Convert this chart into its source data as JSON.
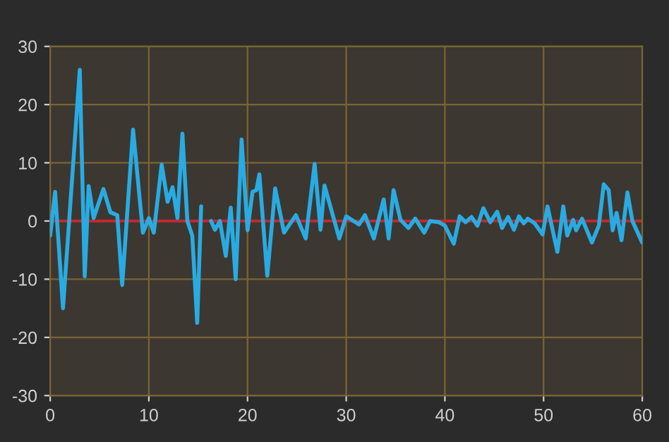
{
  "chart_data": {
    "type": "line",
    "xlim": [
      0,
      60
    ],
    "ylim": [
      -30,
      30
    ],
    "xticks": [
      0,
      10,
      20,
      30,
      40,
      50,
      60
    ],
    "yticks": [
      -30,
      -20,
      -10,
      0,
      10,
      20,
      30
    ],
    "grid": true,
    "marker": "none",
    "line_style": "solid",
    "ref_lines": [
      {
        "axis": "y",
        "value": 0,
        "color": "#c0282d"
      }
    ],
    "series": [
      {
        "color": "#29abe2",
        "x": [
          0,
          0.5,
          1.3,
          3.0,
          3.5,
          3.9,
          4.4,
          5.4,
          6.1,
          6.8,
          7.3,
          8.4,
          9.4,
          10,
          10.5,
          11.3,
          11.9,
          12.4,
          12.9,
          13.4,
          13.9,
          14.4,
          14.9,
          15.3,
          15.8,
          16.3,
          16.7,
          17.2,
          17.8,
          18.3,
          18.8,
          19.4,
          20,
          20.5,
          20.9,
          21.2,
          22,
          22.8,
          23.7,
          24.9,
          25.9,
          26.8,
          27.4,
          27.8,
          29.3,
          30,
          31.3,
          31.9,
          32.8,
          33.8,
          34.3,
          34.8,
          35.5,
          36.3,
          37,
          37.9,
          38.5,
          39.4,
          40,
          40.9,
          41.5,
          42.1,
          42.7,
          43.3,
          43.9,
          44.6,
          45.3,
          45.8,
          46.4,
          47,
          47.5,
          48,
          48.4,
          49.1,
          49.9,
          50.4,
          51.4,
          52,
          52.4,
          53,
          53.3,
          53.9,
          54.9,
          55.6,
          56.1,
          56.6,
          57,
          57.4,
          57.9,
          58.5,
          59,
          60
        ],
        "values": [
          -2.5,
          5,
          -15,
          26,
          -9.5,
          6,
          0.5,
          5.5,
          1.5,
          1,
          -11,
          15.7,
          -2,
          0.5,
          -2,
          9.7,
          3.3,
          5.8,
          0.5,
          15,
          0,
          -2.5,
          -17.5,
          2.5,
          null,
          0,
          -1.5,
          0,
          -6,
          2.3,
          -10,
          14,
          -1.6,
          5,
          5.3,
          8,
          -9.4,
          5.6,
          -2,
          1,
          -3,
          9.8,
          -1.5,
          6.1,
          -3,
          0.8,
          -0.6,
          1,
          -3,
          3.7,
          -3,
          5.3,
          0.2,
          -1.2,
          0.4,
          -2,
          0,
          -0.2,
          -0.8,
          -3.9,
          0.8,
          -0.2,
          0.7,
          -0.8,
          2.2,
          -0.2,
          1.6,
          -1.2,
          0.7,
          -1.5,
          0.8,
          -0.4,
          0.4,
          -0.4,
          -2.3,
          2.5,
          -5.3,
          2.5,
          -2.5,
          0.2,
          -1.6,
          0.4,
          -3.7,
          -0.8,
          6.3,
          5.3,
          -1.6,
          1.4,
          -3.3,
          4.9,
          0,
          -3.7
        ]
      }
    ]
  }
}
